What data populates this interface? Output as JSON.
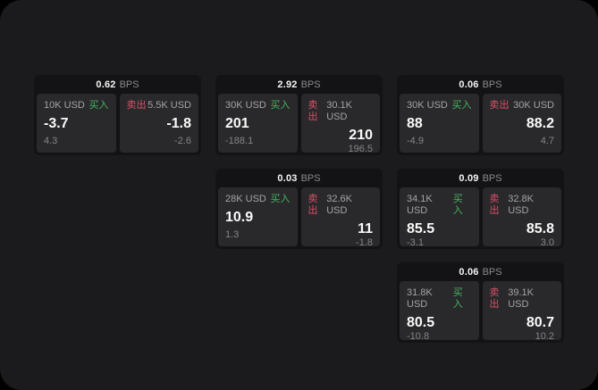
{
  "labels": {
    "bps_unit": "BPS",
    "buy": "买入",
    "sell": "卖出"
  },
  "colors": {
    "page_background": "#000000",
    "panel_background": "#1b1b1d",
    "card_background": "#131315",
    "tile_background": "#29292b",
    "buy_green": "#45b35e",
    "sell_red": "#d94f67",
    "value_white": "#fafafa",
    "label_gray": "#a4a4a8",
    "delta_gray": "#85858a"
  },
  "cards": [
    {
      "col": 1,
      "row": 1,
      "bps": "0.62",
      "buy": {
        "size": "10K USD",
        "value": "-3.7",
        "delta": "4.3"
      },
      "sell": {
        "size": "5.5K USD",
        "value": "-1.8",
        "delta": "-2.6"
      }
    },
    {
      "col": 2,
      "row": 1,
      "bps": "2.92",
      "buy": {
        "size": "30K USD",
        "value": "201",
        "delta": "-188.1"
      },
      "sell": {
        "size": "30.1K USD",
        "value": "210",
        "delta": "196.5"
      }
    },
    {
      "col": 3,
      "row": 1,
      "bps": "0.06",
      "buy": {
        "size": "30K USD",
        "value": "88",
        "delta": "-4.9"
      },
      "sell": {
        "size": "30K USD",
        "value": "88.2",
        "delta": "4.7"
      }
    },
    {
      "col": 2,
      "row": 2,
      "bps": "0.03",
      "buy": {
        "size": "28K USD",
        "value": "10.9",
        "delta": "1.3"
      },
      "sell": {
        "size": "32.6K USD",
        "value": "11",
        "delta": "-1.8"
      }
    },
    {
      "col": 3,
      "row": 2,
      "bps": "0.09",
      "buy": {
        "size": "34.1K USD",
        "value": "85.5",
        "delta": "-3.1"
      },
      "sell": {
        "size": "32.8K USD",
        "value": "85.8",
        "delta": "3.0"
      }
    },
    {
      "col": 3,
      "row": 3,
      "bps": "0.06",
      "buy": {
        "size": "31.8K USD",
        "value": "80.5",
        "delta": "-10.8"
      },
      "sell": {
        "size": "39.1K USD",
        "value": "80.7",
        "delta": "10.2"
      }
    }
  ]
}
